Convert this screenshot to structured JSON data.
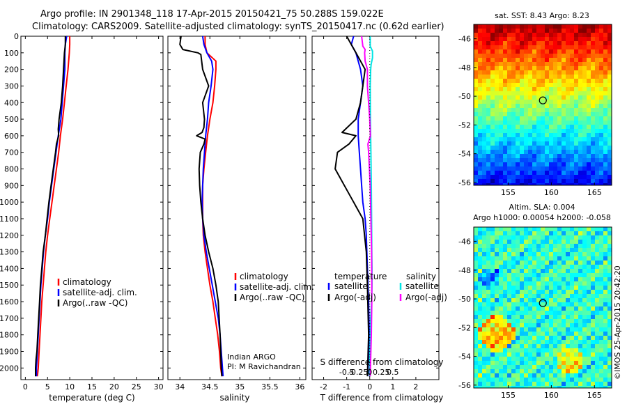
{
  "figure": {
    "title_line1": "Argo profile: IN 2901348_118 17-Apr-2015 20150421_75 50.288S 159.022E",
    "title_line2": "Climatology: CARS2009. Satellite-adjusted climatology: synTS_20150417.nc (0.62d earlier)",
    "credit": "Indian ARGO",
    "pi": "PI: M Ravichandran",
    "copyright": "©IMOS 25-Apr-2015 20:42:20",
    "colors": {
      "climatology": "#ff0000",
      "satellite": "#0000ff",
      "argo": "#000000",
      "sal_satellite": "#00e5e5",
      "sal_argo": "#ff00ff"
    }
  },
  "chart_data": [
    {
      "id": "temperature",
      "type": "line",
      "xlabel": "temperature (deg C)",
      "ylabel": "",
      "xlim": [
        -1,
        31
      ],
      "ylim": [
        2070,
        0
      ],
      "xticks": [
        0,
        5,
        10,
        15,
        20,
        25,
        30
      ],
      "yticks": [
        0,
        100,
        200,
        300,
        400,
        500,
        600,
        700,
        800,
        900,
        1000,
        1100,
        1200,
        1300,
        1400,
        1500,
        1600,
        1700,
        1800,
        1900,
        2000
      ],
      "grid": false,
      "legend_position": "middle-right",
      "series": [
        {
          "name": "climatology",
          "color": "#ff0000",
          "x": [
            10.0,
            10.0,
            9.9,
            9.6,
            9.2,
            8.8,
            8.4,
            7.9,
            7.5,
            7.0,
            6.5,
            6.0,
            5.5,
            5.0,
            4.6,
            4.3,
            4.0,
            3.7,
            3.5,
            3.3,
            3.1,
            3.0,
            2.9,
            2.8,
            2.7
          ],
          "y": [
            0,
            50,
            100,
            200,
            300,
            400,
            500,
            600,
            700,
            800,
            900,
            1000,
            1100,
            1200,
            1300,
            1400,
            1500,
            1600,
            1700,
            1800,
            1900,
            1950,
            2000,
            2030,
            2050
          ]
        },
        {
          "name": "satellite-adj. clim.",
          "color": "#0000ff",
          "x": [
            9.3,
            9.0,
            8.9,
            8.9,
            8.6,
            8.3,
            8.0,
            7.4,
            6.9,
            6.4,
            5.9,
            5.4,
            5.0,
            4.5,
            4.1,
            3.8,
            3.5,
            3.3,
            3.1,
            2.9,
            2.7,
            2.6,
            2.5,
            2.5
          ],
          "y": [
            0,
            50,
            100,
            200,
            300,
            400,
            500,
            600,
            700,
            800,
            900,
            1000,
            1100,
            1200,
            1300,
            1400,
            1500,
            1600,
            1700,
            1800,
            1900,
            1950,
            2000,
            2050
          ]
        },
        {
          "name": "Argo(..raw -QC)",
          "color": "#000000",
          "x": [
            9.0,
            9.0,
            8.8,
            8.6,
            8.4,
            8.1,
            7.6,
            7.4,
            7.5,
            7.0,
            6.8,
            6.3,
            5.8,
            5.3,
            4.9,
            4.5,
            4.0,
            3.7,
            3.4,
            3.2,
            3.0,
            2.8,
            2.6,
            2.4,
            2.3,
            2.3
          ],
          "y": [
            0,
            50,
            100,
            200,
            300,
            400,
            500,
            560,
            600,
            650,
            700,
            800,
            900,
            1000,
            1100,
            1200,
            1300,
            1400,
            1500,
            1600,
            1700,
            1800,
            1900,
            1950,
            2000,
            2050
          ]
        }
      ]
    },
    {
      "id": "salinity",
      "type": "line",
      "xlabel": "salinity",
      "ylabel": "",
      "xlim": [
        33.8,
        36.1
      ],
      "ylim": [
        2070,
        0
      ],
      "xticks": [
        34,
        34.5,
        35,
        35.5,
        36
      ],
      "grid": false,
      "legend_position": "middle-right",
      "series": [
        {
          "name": "climatology",
          "color": "#ff0000",
          "x": [
            34.42,
            34.42,
            34.45,
            34.6,
            34.6,
            34.58,
            34.55,
            34.5,
            34.46,
            34.43,
            34.4,
            34.38,
            34.38,
            34.38,
            34.39,
            34.42,
            34.46,
            34.5,
            34.55,
            34.59,
            34.63,
            34.66,
            34.68,
            34.7
          ],
          "y": [
            0,
            50,
            100,
            150,
            200,
            300,
            400,
            500,
            600,
            700,
            800,
            900,
            1000,
            1100,
            1200,
            1300,
            1400,
            1500,
            1600,
            1700,
            1800,
            1900,
            2000,
            2050
          ]
        },
        {
          "name": "satellite-adj. clim.",
          "color": "#0000ff",
          "x": [
            34.38,
            34.4,
            34.45,
            34.53,
            34.55,
            34.52,
            34.48,
            34.46,
            34.43,
            34.41,
            34.39,
            34.38,
            34.37,
            34.38,
            34.4,
            34.44,
            34.49,
            34.54,
            34.59,
            34.64,
            34.67,
            34.69,
            34.71,
            34.72
          ],
          "y": [
            0,
            50,
            100,
            150,
            200,
            300,
            400,
            500,
            600,
            700,
            800,
            900,
            1000,
            1100,
            1200,
            1300,
            1400,
            1500,
            1600,
            1700,
            1800,
            1900,
            2000,
            2050
          ]
        },
        {
          "name": "Argo(..raw -QC)",
          "color": "#000000",
          "x": [
            34.02,
            34.0,
            34.05,
            34.3,
            34.35,
            34.38,
            34.48,
            34.38,
            34.41,
            34.4,
            34.37,
            34.28,
            34.42,
            34.4,
            34.34,
            34.32,
            34.33,
            34.35,
            34.38,
            34.42,
            34.48,
            34.55,
            34.6,
            34.64,
            34.67,
            34.69,
            34.7
          ],
          "y": [
            0,
            50,
            80,
            100,
            110,
            200,
            300,
            400,
            500,
            550,
            580,
            600,
            620,
            650,
            700,
            800,
            900,
            1000,
            1100,
            1200,
            1300,
            1400,
            1500,
            1600,
            1800,
            2000,
            2050
          ]
        }
      ]
    },
    {
      "id": "difference",
      "type": "line",
      "xlabel": "T difference from climatology",
      "x2label": "S difference from climatology",
      "ylabel": "",
      "xlim": [
        -2.5,
        3.0
      ],
      "ylim": [
        2070,
        0
      ],
      "xticks": [
        -2,
        -1,
        0,
        1,
        2
      ],
      "x2ticks": [
        -0.5,
        -0.25,
        0,
        0.25,
        0.5
      ],
      "x2tick_labels": [
        "-0.5",
        "-0.25",
        "0",
        "0.25",
        "0.5"
      ],
      "grid": false,
      "zero_line": "dotted",
      "legend_groups": [
        "temperature",
        "salinity"
      ],
      "series": [
        {
          "name": "satellite",
          "group": "temperature",
          "color": "#0000ff",
          "x": [
            -0.7,
            -0.8,
            -0.6,
            -0.4,
            -0.3,
            -0.4,
            -0.5,
            -0.5,
            -0.45,
            -0.4,
            -0.35,
            -0.3,
            -0.2,
            -0.15,
            -0.1,
            -0.05,
            -0.02,
            -0.02
          ],
          "y": [
            0,
            50,
            100,
            200,
            300,
            400,
            500,
            600,
            700,
            800,
            900,
            1000,
            1100,
            1200,
            1400,
            1600,
            1800,
            2050
          ]
        },
        {
          "name": "Argo(-adj)",
          "group": "temperature",
          "color": "#000000",
          "x": [
            -1.0,
            -0.6,
            -0.4,
            -0.2,
            -0.3,
            -0.4,
            -0.6,
            -1.2,
            -0.6,
            -0.9,
            -1.4,
            -1.5,
            -1.1,
            -0.7,
            -0.3,
            -0.15,
            -0.1,
            -0.05,
            -0.1
          ],
          "y": [
            0,
            100,
            150,
            200,
            300,
            400,
            500,
            580,
            600,
            650,
            700,
            800,
            900,
            1000,
            1100,
            1300,
            1500,
            1800,
            2050
          ]
        },
        {
          "name": "satellite",
          "group": "salinity",
          "color": "#00e5e5",
          "x": [
            0.02,
            0.02,
            0.12,
            0.12,
            0.06,
            0.04,
            0.02,
            0.03,
            0.05,
            0.07,
            0.08,
            0.09,
            0.1,
            0.1,
            0.08,
            0.04,
            0.01,
            -0.01
          ],
          "y": [
            0,
            60,
            90,
            130,
            170,
            200,
            300,
            500,
            700,
            900,
            1100,
            1300,
            1400,
            1500,
            1600,
            1700,
            1900,
            2050
          ]
        },
        {
          "name": "Argo(-adj)",
          "group": "salinity",
          "color": "#ff00ff",
          "x": [
            -0.35,
            -0.3,
            -0.2,
            -0.22,
            -0.2,
            -0.1,
            -0.1,
            0.0,
            0.03,
            -0.08,
            -0.05,
            0.02,
            0.05,
            0.08,
            0.09,
            0.09,
            0.07,
            0.02
          ],
          "y": [
            0,
            60,
            80,
            100,
            150,
            200,
            300,
            500,
            600,
            650,
            700,
            900,
            1100,
            1300,
            1500,
            1600,
            1800,
            2050
          ]
        }
      ]
    },
    {
      "id": "sst_map",
      "type": "heatmap",
      "title": "sat. SST: 8.43 Argo: 8.23",
      "xlim": [
        151,
        167
      ],
      "ylim": [
        -56.2,
        -45
      ],
      "xticks": [
        155,
        160,
        165
      ],
      "yticks": [
        -46,
        -48,
        -50,
        -52,
        -54,
        -56
      ],
      "marker": {
        "lon": 159.02,
        "lat": -50.29
      }
    },
    {
      "id": "sla_map",
      "type": "heatmap",
      "title": "Altim. SLA: 0.004",
      "subtitle": "Argo h1000: 0.00054 h2000: -0.058",
      "xlim": [
        151,
        167
      ],
      "ylim": [
        -56.2,
        -45
      ],
      "xticks": [
        155,
        160,
        165
      ],
      "yticks": [
        -46,
        -48,
        -50,
        -52,
        -54,
        -56
      ],
      "marker": {
        "lon": 159.02,
        "lat": -50.29
      }
    }
  ]
}
